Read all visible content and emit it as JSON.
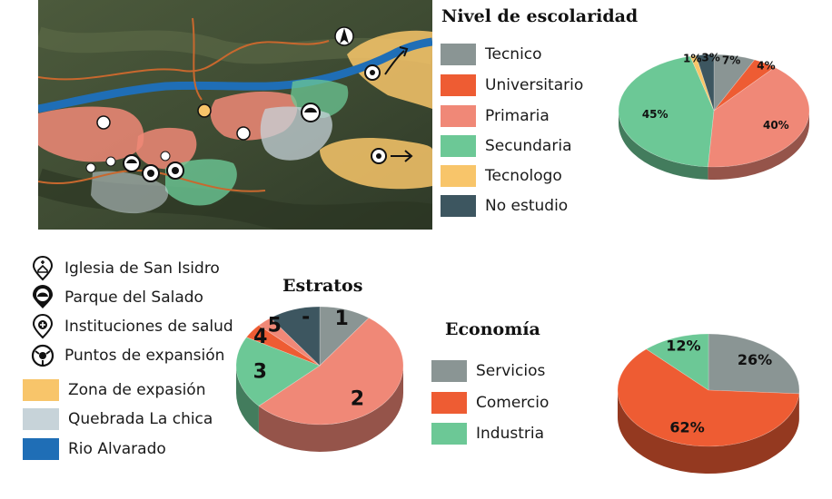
{
  "colors": {
    "tecnico": "#8a9594",
    "universitario": "#ee5c33",
    "primaria": "#f08877",
    "secundaria": "#6cc896",
    "tecnologo": "#f8c56a",
    "no_estudio": "#3d5660",
    "servicios": "#8a9594",
    "comercio": "#ee5c33",
    "industria": "#6cc896",
    "zona_expansion": "#f8c56a",
    "quebrada": "#c7d3d9",
    "rio": "#1f6eb6"
  },
  "map_legend": {
    "items": [
      {
        "label": "Iglesia de San Isidro",
        "icon": "church-icon"
      },
      {
        "label": "Parque del Salado",
        "icon": "park-icon"
      },
      {
        "label": "Instituciones de salud",
        "icon": "health-icon"
      },
      {
        "label": "Puntos de expansión",
        "icon": "expansion-icon"
      },
      {
        "label": "Zona de expasión",
        "color": "#f8c56a"
      },
      {
        "label": "Quebrada La chica",
        "color": "#c7d3d9"
      },
      {
        "label": "Rio Alvarado",
        "color": "#1f6eb6"
      }
    ]
  },
  "chart_data": [
    {
      "type": "pie",
      "title": "Nivel de escolaridad",
      "categories": [
        "Tecnico",
        "Universitario",
        "Primaria",
        "Secundaria",
        "Tecnologo",
        "No estudio"
      ],
      "values": [
        7,
        4,
        40,
        45,
        1,
        3
      ],
      "labels": [
        "7%",
        "4%",
        "40%",
        "45%",
        "1%",
        "3%"
      ],
      "colors": [
        "#8a9594",
        "#ee5c33",
        "#f08877",
        "#6cc896",
        "#f8c56a",
        "#3d5660"
      ],
      "legend": "left"
    },
    {
      "type": "pie",
      "title": "Estratos",
      "categories": [
        "1",
        "2",
        "3",
        "4",
        "5",
        "-"
      ],
      "values": [
        10,
        53,
        20,
        4,
        3,
        10
      ],
      "labels": [
        "1",
        "2",
        "3",
        "4",
        "5",
        "-"
      ],
      "colors": [
        "#8a9594",
        "#f08877",
        "#6cc896",
        "#ee5c33",
        "#f08877",
        "#3d5660"
      ]
    },
    {
      "type": "pie",
      "title": "Economía",
      "categories": [
        "Servicios",
        "Comercio",
        "Industria"
      ],
      "values": [
        26,
        62,
        12
      ],
      "labels": [
        "26%",
        "62%",
        "12%"
      ],
      "colors": [
        "#8a9594",
        "#ee5c33",
        "#6cc896"
      ],
      "legend": "left"
    }
  ]
}
